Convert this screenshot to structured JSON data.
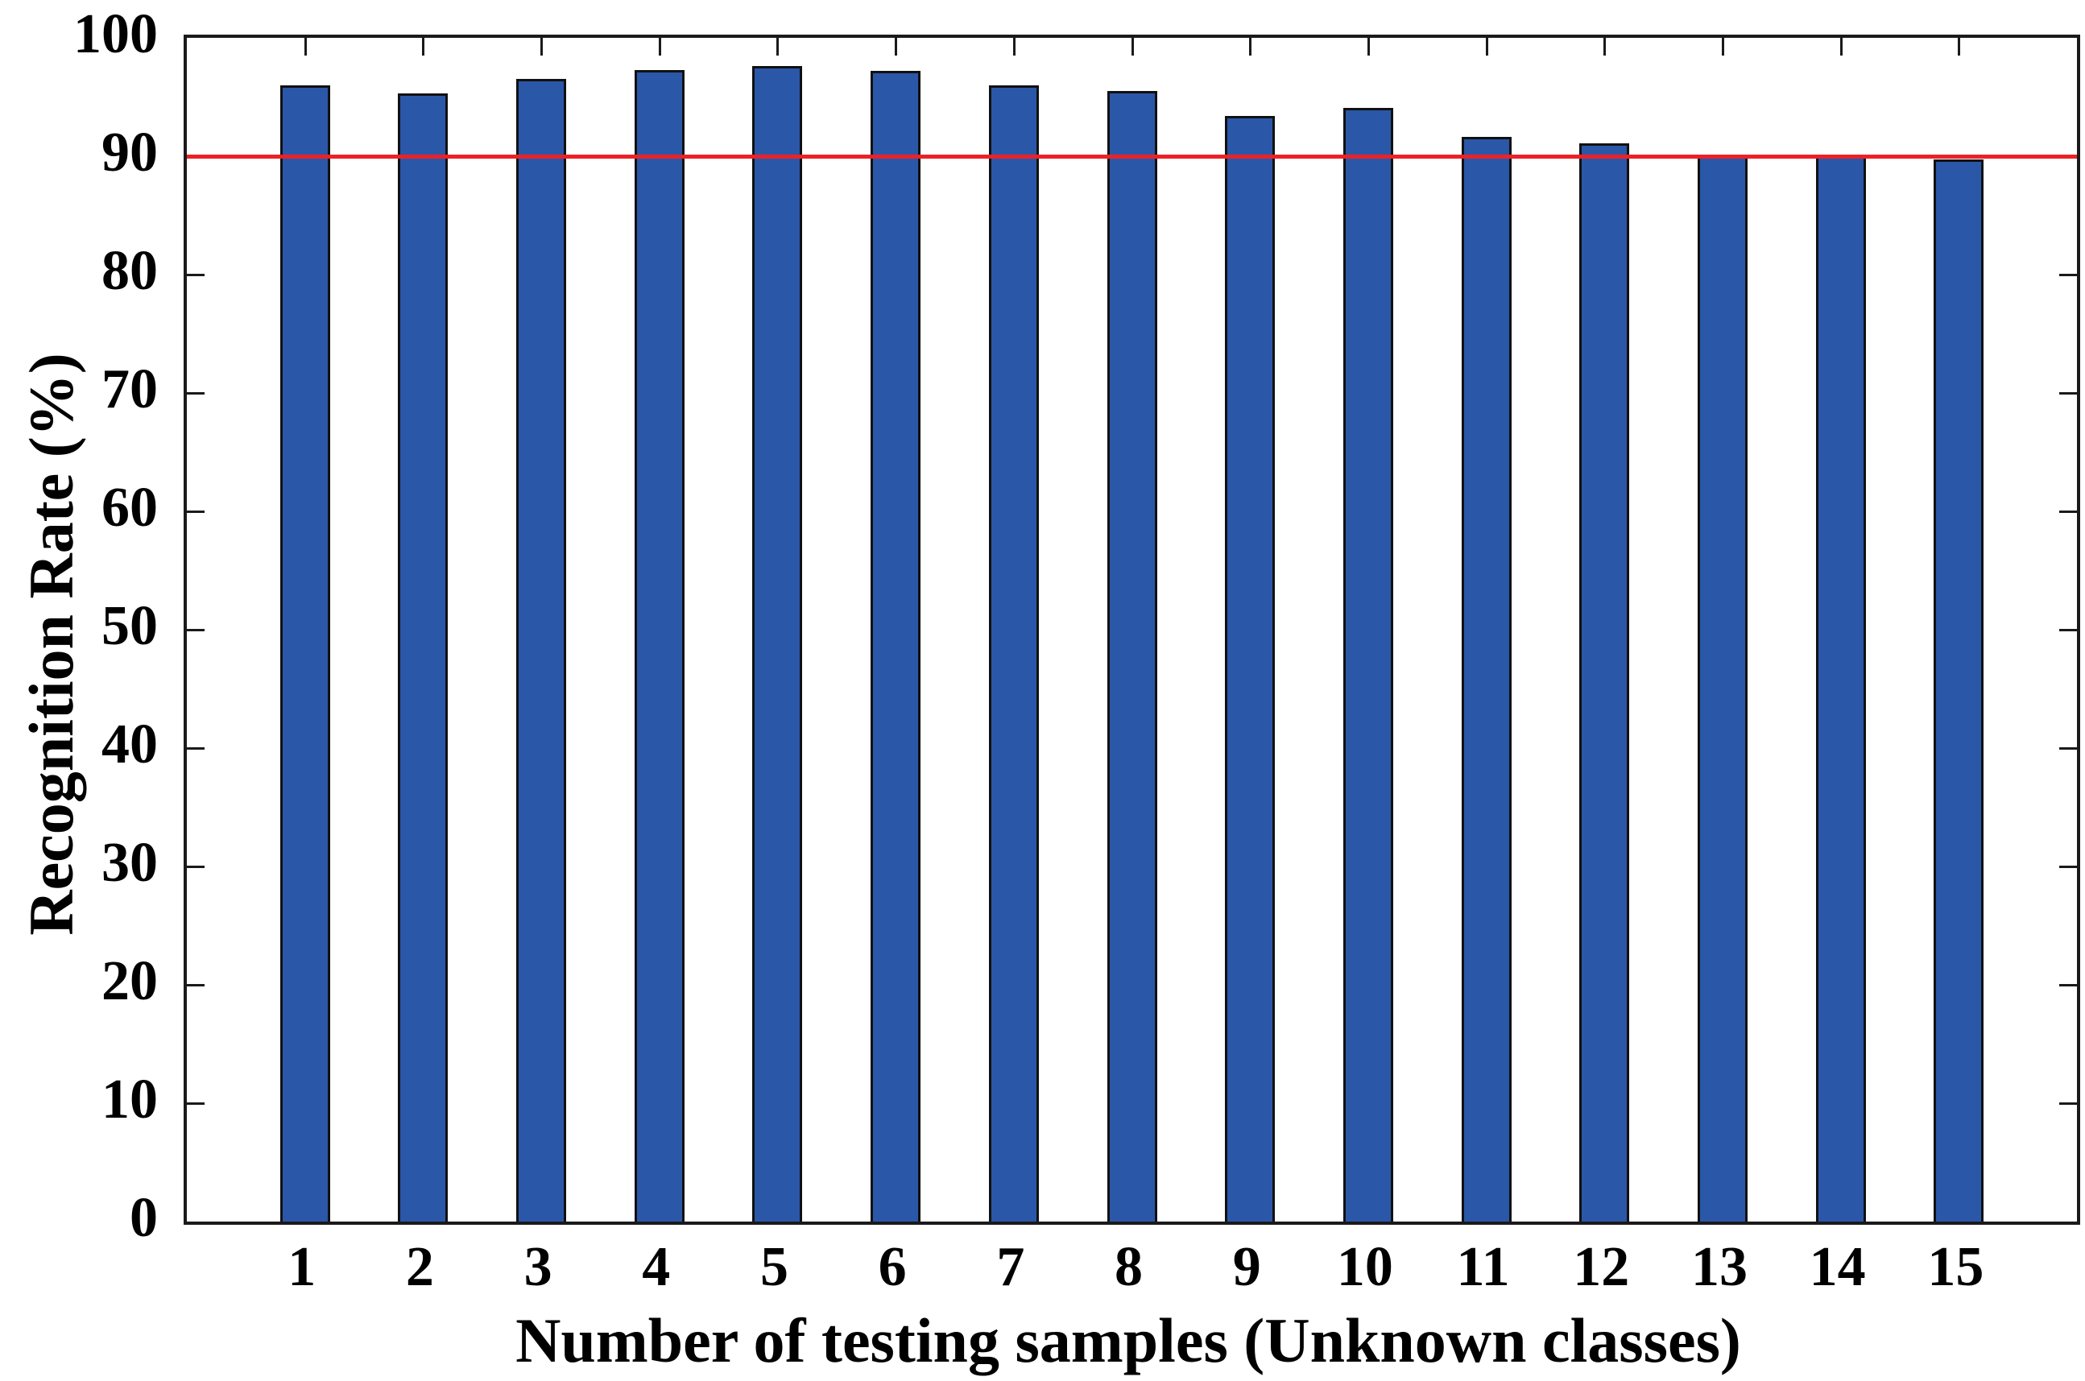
{
  "chart_data": {
    "type": "bar",
    "categories": [
      "1",
      "2",
      "3",
      "4",
      "5",
      "6",
      "7",
      "8",
      "9",
      "10",
      "11",
      "12",
      "13",
      "14",
      "15"
    ],
    "values": [
      96.0,
      95.3,
      96.5,
      97.3,
      97.6,
      97.2,
      96.0,
      95.5,
      93.4,
      94.1,
      91.6,
      91.1,
      90.0,
      90.0,
      89.7
    ],
    "title": "",
    "xlabel": "Number of testing samples (Unknown classes)",
    "ylabel": "Recognition Rate (%)",
    "ylim": [
      0,
      100
    ],
    "xlim": [
      0,
      16
    ],
    "y_ticks": [
      0,
      10,
      20,
      30,
      40,
      50,
      60,
      70,
      80,
      90,
      100
    ],
    "grid": false,
    "legend": null,
    "bar_color": "#2B57A8",
    "bar_edge_color": "#111111",
    "reference_line": {
      "value": 90,
      "color": "#ED2125"
    }
  }
}
